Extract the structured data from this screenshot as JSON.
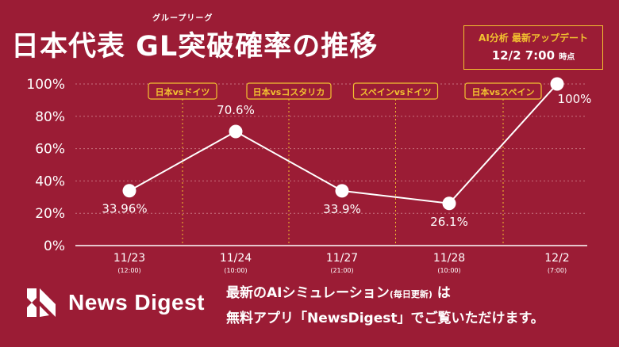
{
  "header": {
    "title": "日本代表 GL突破確率の推移",
    "ruby": "グループリーグ",
    "update_line1": "AI分析 最新アップデート",
    "update_time": "12/2 7:00",
    "update_suffix": "時点"
  },
  "chart_data": {
    "type": "line",
    "title": "日本代表 GL突破確率の推移",
    "categories": [
      "11/23",
      "11/24",
      "11/27",
      "11/28",
      "12/2"
    ],
    "category_times": [
      "(12:00)",
      "(10:00)",
      "(21:00)",
      "(10:00)",
      "(7:00)"
    ],
    "values": [
      33.96,
      70.6,
      33.9,
      26.1,
      100
    ],
    "value_labels": [
      "33.96%",
      "70.6%",
      "33.9%",
      "26.1%",
      "100%"
    ],
    "y_ticks": [
      "0%",
      "20%",
      "40%",
      "60%",
      "80%",
      "100%"
    ],
    "y_tick_values": [
      0,
      20,
      40,
      60,
      80,
      100
    ],
    "ylim": [
      0,
      100
    ],
    "match_labels": [
      "日本vsドイツ",
      "日本vsコスタリカ",
      "スペインvsドイツ",
      "日本vsスペイン"
    ],
    "grid": true,
    "colors": {
      "line": "#ffffff",
      "match_label": "#f2c230",
      "grid": "#c7707e"
    }
  },
  "footer": {
    "logo_text": "News Digest",
    "promo_line1": "最新のAIシミュレーション",
    "promo_line1_small": "(毎日更新)",
    "promo_line1_end": "は",
    "promo_line2": "無料アプリ「NewsDigest」でご覧いただけます。"
  }
}
